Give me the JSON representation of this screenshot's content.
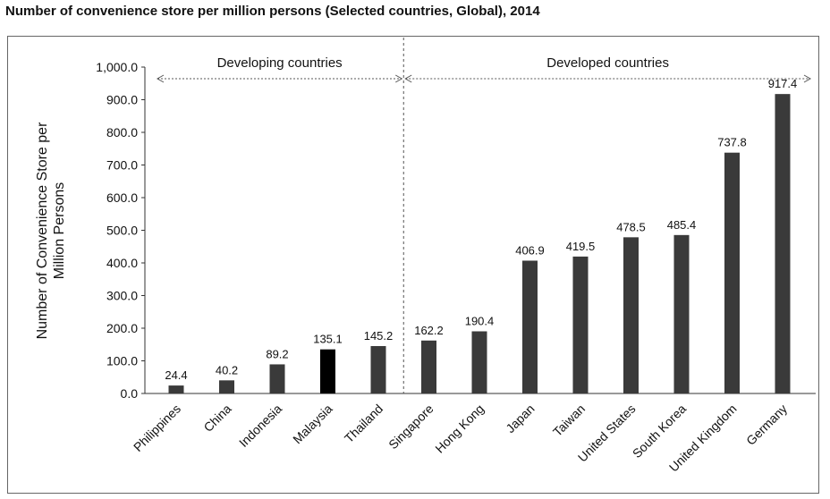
{
  "chart_data": {
    "type": "bar",
    "title": "Number of convenience store per million persons (Selected countries, Global), 2014",
    "xlabel": "",
    "ylabel": "Number of Convenience Store per Million Persons",
    "ylim": [
      0,
      1000
    ],
    "yticks": [
      0,
      100,
      200,
      300,
      400,
      500,
      600,
      700,
      800,
      900,
      1000
    ],
    "ytick_labels": [
      "0.0",
      "100.0",
      "200.0",
      "300.0",
      "400.0",
      "500.0",
      "600.0",
      "700.0",
      "800.0",
      "900.0",
      "1,000.0"
    ],
    "categories": [
      "Philippines",
      "China",
      "Indonesia",
      "Malaysia",
      "Thailand",
      "Singapore",
      "Hong Kong",
      "Japan",
      "Taiwan",
      "United States",
      "South Korea",
      "United Kingdom",
      "Germany"
    ],
    "values": [
      24.4,
      40.2,
      89.2,
      135.1,
      145.2,
      162.2,
      190.4,
      406.9,
      419.5,
      478.5,
      485.4,
      737.8,
      917.4
    ],
    "value_labels": [
      "24.4",
      "40.2",
      "89.2",
      "135.1",
      "145.2",
      "162.2",
      "190.4",
      "406.9",
      "419.5",
      "478.5",
      "485.4",
      "737.8",
      "917.4"
    ],
    "highlight_category": "Malaysia",
    "groups": [
      {
        "label": "Developing countries",
        "start": 0,
        "end": 4
      },
      {
        "label": "Developed countries",
        "start": 5,
        "end": 12
      }
    ],
    "grid": false
  },
  "colors": {
    "bar": "#3a3a3a",
    "highlight_bar": "#000000",
    "axis": "#333333",
    "text": "#111111"
  }
}
